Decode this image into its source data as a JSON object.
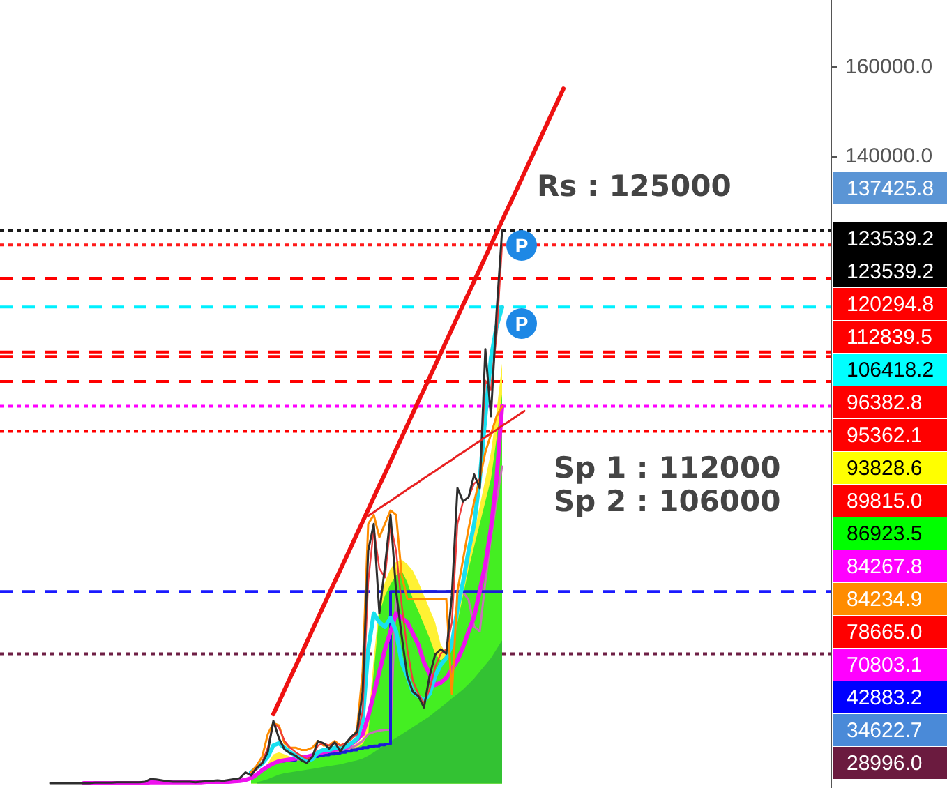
{
  "chart_data": {
    "type": "line",
    "categories": [
      null,
      null,
      null,
      null,
      null,
      null,
      null,
      null,
      null,
      null,
      null,
      null,
      null,
      null,
      null,
      null,
      null,
      null,
      null,
      null,
      null,
      null,
      null,
      null,
      null,
      null,
      null,
      null,
      null,
      null,
      null,
      null,
      null,
      null,
      null,
      null,
      null,
      null,
      null,
      null,
      null,
      null,
      null,
      null,
      null,
      null,
      null,
      null,
      null,
      null,
      null,
      null,
      null,
      null,
      null,
      null,
      null,
      null,
      null,
      null,
      null,
      null,
      null,
      null,
      null,
      null,
      null,
      null,
      null,
      null,
      null,
      null,
      null,
      null,
      null,
      null,
      null,
      null,
      null,
      null,
      null,
      null,
      null,
      null,
      null,
      null,
      null,
      null,
      null,
      null,
      null,
      null,
      null,
      null,
      null,
      null,
      null,
      null,
      null,
      null,
      null,
      null,
      null,
      null,
      null,
      null,
      null,
      null,
      null,
      null,
      null,
      null,
      null,
      null,
      null,
      null,
      null,
      null,
      null,
      null,
      null,
      null,
      null,
      null,
      null,
      null,
      null,
      null,
      null,
      null,
      null,
      null,
      null,
      null,
      null,
      null,
      null,
      null,
      null,
      null,
      null,
      null,
      null,
      null,
      null,
      null,
      null,
      null,
      null,
      null
    ],
    "series": [
      {
        "type": "area",
        "color": "#fff133",
        "values": [
          null,
          null,
          null,
          null,
          null,
          null,
          null,
          null,
          null,
          null,
          null,
          null,
          null,
          null,
          null,
          null,
          null,
          null,
          null,
          null,
          null,
          null,
          null,
          null,
          null,
          null,
          null,
          null,
          null,
          null,
          null,
          null,
          null,
          null,
          null,
          null,
          null,
          null,
          null,
          null,
          null,
          null,
          null,
          null,
          null,
          900,
          1700,
          3000,
          4500,
          6500,
          7000,
          6500,
          6000,
          5800,
          5600,
          5500,
          5800,
          6500,
          6800,
          7000,
          7300,
          7500,
          7800,
          8300,
          9000,
          10000,
          14000,
          28000,
          40000,
          45000,
          48000,
          49500,
          50000,
          49000,
          47500,
          45000,
          42000,
          39000,
          36000,
          31000,
          29000,
          31500,
          37000,
          43000,
          50000,
          56000,
          62000,
          68000,
          74000,
          83000,
          93828.6,
          null,
          null,
          null,
          null,
          null,
          null,
          null,
          null,
          null,
          null,
          null,
          null,
          null,
          null,
          null,
          null,
          null,
          null,
          null,
          null,
          null,
          null,
          null,
          null,
          null,
          null,
          null,
          null,
          null,
          null,
          null,
          null,
          null,
          null,
          null,
          null,
          null,
          null,
          null,
          null,
          null,
          null,
          null,
          null,
          null,
          null,
          null,
          null,
          null,
          null,
          null,
          null,
          null,
          null,
          null,
          null,
          null,
          null,
          null
        ]
      },
      {
        "type": "area",
        "color": "#44ee22",
        "values": [
          null,
          null,
          null,
          null,
          null,
          null,
          null,
          null,
          null,
          null,
          null,
          null,
          null,
          null,
          null,
          null,
          null,
          null,
          null,
          null,
          null,
          null,
          null,
          null,
          null,
          null,
          null,
          null,
          null,
          null,
          null,
          null,
          null,
          null,
          null,
          null,
          null,
          null,
          null,
          null,
          null,
          null,
          null,
          null,
          null,
          800,
          1500,
          2500,
          3500,
          4500,
          5000,
          5000,
          5000,
          5000,
          5200,
          5200,
          5500,
          6000,
          6200,
          6500,
          6800,
          7000,
          7300,
          7600,
          8000,
          8800,
          11000,
          25000,
          38000,
          42000,
          44500,
          46500,
          47500,
          45000,
          41300,
          38500,
          35500,
          32500,
          29000,
          27500,
          28500,
          31000,
          36000,
          42000,
          48000,
          53000,
          58000,
          63000,
          68000,
          77000,
          86923.5,
          null,
          null,
          null,
          null,
          null,
          null,
          null,
          null,
          null,
          null,
          null,
          null,
          null,
          null,
          null,
          null,
          null,
          null,
          null,
          null,
          null,
          null,
          null,
          null,
          null,
          null,
          null,
          null,
          null,
          null,
          null,
          null,
          null,
          null,
          null,
          null,
          null,
          null,
          null,
          null,
          null,
          null,
          null,
          null,
          null,
          null,
          null,
          null,
          null,
          null,
          null,
          null,
          null,
          null,
          null,
          null,
          null,
          null,
          null
        ]
      },
      {
        "type": "area",
        "color": "#33c233",
        "values": [
          null,
          null,
          null,
          null,
          null,
          null,
          null,
          null,
          null,
          null,
          null,
          null,
          null,
          null,
          null,
          null,
          null,
          null,
          null,
          null,
          null,
          null,
          null,
          null,
          null,
          null,
          null,
          null,
          null,
          null,
          null,
          null,
          null,
          null,
          null,
          null,
          null,
          null,
          null,
          null,
          null,
          null,
          null,
          null,
          null,
          null,
          300,
          600,
          1000,
          1500,
          2000,
          2300,
          2500,
          2700,
          2900,
          3100,
          3300,
          3500,
          3700,
          3900,
          4100,
          4300,
          4600,
          4900,
          5200,
          5600,
          6200,
          7000,
          7800,
          8600,
          9400,
          10200,
          11000,
          11800,
          12600,
          13400,
          14200,
          15000,
          16000,
          17000,
          18000,
          19000,
          20000,
          21000,
          22200,
          23500,
          25000,
          26500,
          28000,
          30000,
          32000,
          null,
          null,
          null,
          null,
          null,
          null,
          null,
          null,
          null,
          null,
          null,
          null,
          null,
          null,
          null,
          null,
          null,
          null,
          null,
          null,
          null,
          null,
          null,
          null,
          null,
          null,
          null,
          null,
          null,
          null,
          null,
          null,
          null,
          null,
          null,
          null,
          null,
          null,
          null,
          null,
          null,
          null,
          null,
          null,
          null,
          null,
          null,
          null,
          null,
          null,
          null,
          null,
          null,
          null,
          null,
          null,
          null,
          null,
          null
        ]
      },
      {
        "type": "line",
        "color": "#c870b8",
        "values": [
          null,
          null,
          null,
          null,
          null,
          null,
          null,
          null,
          null,
          null,
          null,
          null,
          null,
          null,
          null,
          null,
          null,
          null,
          null,
          null,
          null,
          null,
          null,
          null,
          null,
          null,
          null,
          null,
          null,
          null,
          null,
          null,
          null,
          null,
          null,
          null,
          null,
          null,
          null,
          null,
          null,
          null,
          null,
          null,
          null,
          1500,
          2200,
          3000,
          3800,
          4500,
          5000,
          5200,
          5300,
          5400,
          5500,
          5600,
          5800,
          6000,
          6300,
          6600,
          6900,
          7200,
          7500,
          8000,
          8600,
          9500,
          11000,
          11500,
          11800,
          12000,
          12000,
          42800,
          42800,
          42800,
          42800,
          42800,
          42800,
          42800,
          42800,
          42800,
          42800,
          42800,
          42800,
          42800,
          41000,
          35000,
          34000,
          45000,
          55000,
          63000,
          70803.1,
          null,
          null,
          null,
          null,
          null,
          null,
          null,
          null,
          null,
          null,
          null,
          null,
          null,
          null,
          null,
          null,
          null,
          null,
          null,
          null,
          null,
          null,
          null,
          null,
          null,
          null,
          null,
          null,
          null,
          null,
          null,
          null,
          null,
          null,
          null,
          null,
          null,
          null,
          null,
          null,
          null,
          null,
          null,
          null,
          null,
          null,
          null,
          null,
          null,
          null,
          null,
          null,
          null,
          null,
          null,
          null,
          null,
          null,
          null
        ]
      },
      {
        "type": "step",
        "color": "#1c1cd8",
        "values": [
          null,
          null,
          null,
          null,
          null,
          null,
          null,
          null,
          null,
          null,
          null,
          null,
          null,
          null,
          null,
          null,
          null,
          null,
          null,
          null,
          null,
          null,
          null,
          null,
          null,
          null,
          null,
          null,
          null,
          null,
          null,
          null,
          null,
          null,
          null,
          null,
          null,
          null,
          null,
          null,
          null,
          null,
          null,
          null,
          null,
          null,
          null,
          null,
          null,
          null,
          5000,
          5000,
          5200,
          5200,
          5500,
          5500,
          5800,
          6000,
          6200,
          6400,
          6600,
          6800,
          7000,
          7200,
          7500,
          7800,
          8000,
          8200,
          8400,
          8600,
          8800,
          42883.2,
          42883.2,
          42883.2,
          42883.2,
          42883.2,
          42883.2,
          42883.2,
          42883.2,
          42883.2,
          42883.2,
          42883.2,
          42883.2,
          42883.2,
          42883.2,
          42883.2,
          42883.2,
          42883.2,
          42883.2,
          42883.2,
          42883.2,
          null,
          null,
          null,
          null,
          null,
          null,
          null,
          null,
          null,
          null,
          null,
          null,
          null,
          null,
          null,
          null,
          null,
          null,
          null,
          null,
          null,
          null,
          null,
          null,
          null,
          null,
          null,
          null,
          null,
          null,
          null,
          null,
          null,
          null,
          null,
          null,
          null,
          null,
          null,
          null,
          null,
          null,
          null,
          null,
          null,
          null,
          null,
          null,
          null,
          null,
          null,
          null,
          null,
          null,
          null,
          null,
          null,
          null,
          null
        ]
      },
      {
        "type": "line",
        "color": "#ee11ee",
        "values": [
          null,
          null,
          null,
          null,
          null,
          null,
          null,
          null,
          null,
          null,
          null,
          null,
          null,
          null,
          null,
          100,
          100,
          100,
          100,
          100,
          100,
          100,
          100,
          100,
          100,
          100,
          100,
          300,
          300,
          300,
          300,
          300,
          300,
          300,
          300,
          300,
          300,
          400,
          400,
          400,
          400,
          400,
          500,
          600,
          800,
          1200,
          2000,
          3000,
          3800,
          4500,
          5000,
          5200,
          5400,
          5600,
          5800,
          6000,
          6300,
          6700,
          7000,
          7300,
          7600,
          7800,
          8000,
          8800,
          9800,
          11000,
          15000,
          20000,
          25000,
          30000,
          34000,
          38000,
          37000,
          36000,
          33500,
          31000,
          27000,
          24500,
          22000,
          22500,
          23600,
          25500,
          27500,
          30500,
          34000,
          37300,
          43000,
          49000,
          57000,
          68000,
          84267.8,
          null,
          null,
          null,
          null,
          null,
          null,
          null,
          null,
          null,
          null,
          null,
          null,
          null,
          null,
          null,
          null,
          null,
          null,
          null,
          null,
          null,
          null,
          null,
          null,
          null,
          null,
          null,
          null,
          null,
          null,
          null,
          null,
          null,
          null,
          null,
          null,
          null,
          null,
          null,
          null,
          null,
          null,
          null,
          null,
          null,
          null,
          null,
          null,
          null,
          null,
          null,
          null,
          null,
          null,
          null,
          null,
          null,
          null,
          null
        ]
      },
      {
        "type": "line",
        "color": "#18e0f0",
        "values": [
          null,
          null,
          null,
          null,
          null,
          null,
          null,
          null,
          null,
          null,
          null,
          null,
          null,
          null,
          null,
          null,
          null,
          null,
          null,
          null,
          null,
          null,
          null,
          null,
          null,
          null,
          null,
          null,
          null,
          null,
          null,
          null,
          null,
          null,
          null,
          null,
          null,
          null,
          null,
          null,
          null,
          null,
          null,
          null,
          null,
          2500,
          3500,
          4500,
          6000,
          8500,
          9000,
          8000,
          7000,
          6200,
          5500,
          5000,
          5500,
          7000,
          7500,
          7500,
          8000,
          7800,
          8200,
          9000,
          10000,
          14000,
          30000,
          38000,
          36000,
          35000,
          37000,
          34000,
          27000,
          24000,
          20500,
          19500,
          18500,
          20000,
          24000,
          26500,
          28000,
          31000,
          39000,
          45000,
          52000,
          58000,
          68000,
          82000,
          95000,
          102000,
          106418.2,
          null,
          null,
          null,
          null,
          null,
          null,
          null,
          null,
          null,
          null,
          null,
          null,
          null,
          null,
          null,
          null,
          null,
          null,
          null,
          null,
          null,
          null,
          null,
          null,
          null,
          null,
          null,
          null,
          null,
          null,
          null,
          null,
          null,
          null,
          null,
          null,
          null,
          null,
          null,
          null,
          null,
          null,
          null,
          null,
          null,
          null,
          null,
          null,
          null,
          null,
          null,
          null,
          null,
          null,
          null,
          null,
          null,
          null,
          null
        ]
      },
      {
        "type": "line",
        "color": "#ff8c00",
        "values": [
          null,
          null,
          null,
          null,
          null,
          null,
          null,
          null,
          null,
          null,
          null,
          null,
          null,
          null,
          null,
          null,
          null,
          null,
          null,
          null,
          null,
          null,
          null,
          null,
          null,
          null,
          null,
          null,
          null,
          null,
          null,
          null,
          null,
          null,
          null,
          null,
          null,
          null,
          null,
          null,
          null,
          null,
          null,
          null,
          null,
          2500,
          4000,
          6000,
          11000,
          13500,
          13000,
          9000,
          8000,
          8000,
          7500,
          7500,
          8000,
          9500,
          8500,
          8500,
          9500,
          8500,
          9000,
          10000,
          12000,
          25000,
          58000,
          60000,
          55000,
          58000,
          61000,
          60000,
          46500,
          41300,
          41300,
          41300,
          41300,
          41300,
          41300,
          41300,
          41300,
          20000,
          43000,
          50000,
          57000,
          63000,
          68000,
          74000,
          78000,
          82000,
          84234.9,
          null,
          null,
          null,
          null,
          null,
          null,
          null,
          null,
          null,
          null,
          null,
          null,
          null,
          null,
          null,
          null,
          null,
          null,
          null,
          null,
          null,
          null,
          null,
          null,
          null,
          null,
          null,
          null,
          null,
          null,
          null,
          null,
          null,
          null,
          null,
          null,
          null,
          null,
          null,
          null,
          null,
          null,
          null,
          null,
          null,
          null,
          null,
          null,
          null,
          null,
          null,
          null,
          null,
          null,
          null,
          null,
          null,
          null,
          null
        ]
      },
      {
        "type": "line",
        "color": "#f03c3c",
        "values": [
          null,
          null,
          null,
          null,
          null,
          null,
          null,
          null,
          null,
          null,
          null,
          null,
          null,
          null,
          null,
          null,
          null,
          null,
          null,
          null,
          null,
          null,
          null,
          null,
          null,
          null,
          null,
          null,
          null,
          null,
          null,
          null,
          null,
          null,
          null,
          null,
          null,
          null,
          null,
          null,
          null,
          null,
          null,
          null,
          null,
          2000,
          3200,
          4800,
          8000,
          13500,
          12500,
          9500,
          8000,
          7000,
          6200,
          5500,
          6000,
          8500,
          9000,
          8500,
          9000,
          8500,
          9000,
          10000,
          11000,
          16000,
          45000,
          57000,
          48000,
          46000,
          58000,
          52000,
          40000,
          30000,
          23000,
          20000,
          18000,
          21000,
          26000,
          29000,
          30000,
          36000,
          58000,
          63000,
          64000,
          67000,
          68000,
          90000,
          88000,
          100000,
          120294.8,
          null,
          null,
          null,
          null,
          null,
          null,
          null,
          null,
          null,
          null,
          null,
          null,
          null,
          null,
          null,
          null,
          null,
          null,
          null,
          null,
          null,
          null,
          null,
          null,
          null,
          null,
          null,
          null,
          null,
          null,
          null,
          null,
          null,
          null,
          null,
          null,
          null,
          null,
          null,
          null,
          null,
          null,
          null,
          null,
          null,
          null,
          null,
          null,
          null,
          null,
          null,
          null,
          null,
          null,
          null,
          null,
          null,
          null,
          null
        ]
      },
      {
        "type": "line",
        "color": "#2e2e2e",
        "values": [
          null,
          null,
          null,
          null,
          null,
          null,
          null,
          null,
          null,
          100,
          100,
          100,
          100,
          100,
          100,
          100,
          100,
          200,
          200,
          200,
          200,
          300,
          300,
          300,
          300,
          300,
          400,
          1000,
          900,
          700,
          500,
          400,
          400,
          400,
          400,
          300,
          400,
          500,
          600,
          700,
          600,
          800,
          1000,
          1200,
          2500,
          1800,
          3500,
          4500,
          7000,
          14000,
          10100,
          7600,
          6800,
          6200,
          5200,
          4600,
          6000,
          9500,
          9000,
          7800,
          9200,
          7200,
          9000,
          10500,
          11500,
          20500,
          52000,
          58000,
          38000,
          48500,
          60000,
          43000,
          33000,
          24000,
          20500,
          19500,
          17000,
          24000,
          28800,
          30000,
          29000,
          42000,
          66000,
          63000,
          64000,
          69000,
          66000,
          97000,
          82000,
          105000,
          123539.2,
          null,
          null,
          null,
          null,
          null,
          null,
          null,
          null,
          null,
          null,
          null,
          null,
          null,
          null,
          null,
          null,
          null,
          null,
          null,
          null,
          null,
          null,
          null,
          null,
          null,
          null,
          null,
          null,
          null,
          null,
          null,
          null,
          null,
          null,
          null,
          null,
          null,
          null,
          null,
          null,
          null,
          null,
          null,
          null,
          null,
          null,
          null,
          null,
          null,
          null,
          null,
          null,
          null,
          null,
          null,
          null,
          null,
          null,
          null
        ]
      },
      {
        "type": "line",
        "color": "#ee1111",
        "values": [
          null,
          null,
          null,
          null,
          null,
          null,
          null,
          null,
          null,
          null,
          null,
          null,
          null,
          null,
          null,
          null,
          null,
          null,
          null,
          null,
          null,
          null,
          null,
          null,
          null,
          null,
          null,
          null,
          null,
          null,
          null,
          null,
          null,
          null,
          null,
          null,
          null,
          null,
          null,
          null,
          null,
          null,
          null,
          null,
          null,
          null,
          null,
          null,
          null,
          15500,
          18200,
          20900,
          23600,
          26200,
          28900,
          31600,
          34300,
          37000,
          39700,
          42400,
          45100,
          47700,
          50400,
          53100,
          55800,
          58500,
          61200,
          63900,
          66600,
          69200,
          71900,
          74600,
          77300,
          80000,
          82700,
          85400,
          88000,
          90700,
          93400,
          96100,
          98800,
          101500,
          104200,
          106900,
          109500,
          112200,
          114900,
          117600,
          120300,
          123000,
          125700,
          128400,
          131000,
          133700,
          136400,
          139100,
          141800,
          144500,
          147200,
          149900,
          152500,
          155200,
          null,
          null,
          null,
          null,
          null,
          null,
          null,
          null,
          null,
          null,
          null,
          null,
          null,
          null,
          null,
          null,
          null,
          null,
          null,
          null,
          null,
          null,
          null,
          null,
          null,
          null,
          null,
          null,
          null,
          null,
          null,
          null,
          null,
          null,
          null,
          null,
          null,
          null,
          null,
          null,
          null,
          null,
          null,
          null,
          null,
          null,
          null,
          null
        ]
      },
      {
        "type": "line",
        "color": "#e82020",
        "values": [
          null,
          null,
          null,
          null,
          null,
          null,
          null,
          null,
          null,
          null,
          null,
          null,
          null,
          null,
          null,
          null,
          null,
          null,
          null,
          null,
          null,
          null,
          null,
          null,
          null,
          null,
          null,
          null,
          null,
          null,
          null,
          null,
          null,
          null,
          null,
          null,
          null,
          null,
          null,
          null,
          null,
          null,
          null,
          null,
          null,
          null,
          null,
          null,
          null,
          null,
          null,
          null,
          null,
          null,
          null,
          null,
          null,
          null,
          null,
          null,
          null,
          null,
          null,
          null,
          null,
          null,
          59800,
          60600,
          61500,
          62300,
          63100,
          64000,
          64800,
          65700,
          66500,
          67300,
          68200,
          69000,
          69800,
          70700,
          71500,
          72300,
          73200,
          74000,
          74800,
          75700,
          76500,
          77400,
          78200,
          79000,
          79900,
          80700,
          81500,
          82400,
          83200,
          null,
          null,
          null,
          null,
          null,
          null,
          null,
          null,
          null,
          null,
          null,
          null,
          null,
          null,
          null,
          null,
          null,
          null,
          null,
          null,
          null,
          null,
          null,
          null,
          null,
          null,
          null,
          null,
          null,
          null,
          null,
          null,
          null,
          null,
          null,
          null,
          null,
          null,
          null,
          null,
          null,
          null,
          null,
          null,
          null,
          null,
          null,
          null,
          null,
          null,
          null,
          null,
          null,
          null,
          null
        ]
      }
    ],
    "ylim": [
      -1000,
      175000
    ],
    "yticks": [
      {
        "value": 160000,
        "label": "160000.0"
      },
      {
        "value": 140000,
        "label": "140000.0"
      }
    ],
    "ref_lines": [
      {
        "axis": "y",
        "value": 123539.2,
        "color": "#1a1a1a",
        "line_style": "dotted"
      },
      {
        "axis": "y",
        "value": 120294.8,
        "color": "#ff1a1a",
        "line_style": "dotted"
      },
      {
        "axis": "y",
        "value": 112839.5,
        "color": "#ff0000",
        "line_style": "dashed"
      },
      {
        "axis": "y",
        "value": 106418.2,
        "color": "#00f0ff",
        "line_style": "dashed"
      },
      {
        "axis": "y",
        "value": 96382.8,
        "color": "#ff0000",
        "line_style": "dashed"
      },
      {
        "axis": "y",
        "value": 95362.1,
        "color": "#ff0000",
        "line_style": "dashed"
      },
      {
        "axis": "y",
        "value": 89815,
        "color": "#ff0000",
        "line_style": "dashed"
      },
      {
        "axis": "y",
        "value": 84267.8,
        "color": "#ff00ff",
        "line_style": "dotted"
      },
      {
        "axis": "y",
        "value": 78665,
        "color": "#ff0000",
        "line_style": "dotted"
      },
      {
        "axis": "y",
        "value": 42883.2,
        "color": "#1a1aff",
        "line_style": "dashed"
      },
      {
        "axis": "y",
        "value": 28996,
        "color": "#6e1f45",
        "line_style": "dotted"
      }
    ],
    "annotations": [
      "Rs : 125000",
      "Sp 1 : 112000",
      "Sp 2 : 106000",
      "P",
      "P",
      "137425.8",
      "123539.2",
      "123539.2",
      "120294.8",
      "112839.5",
      "106418.2",
      "96382.8",
      "95362.1",
      "93828.6",
      "89815.0",
      "86923.5",
      "84267.8",
      "84234.9",
      "78665.0",
      "70803.1",
      "42883.2",
      "34622.7",
      "28996.0"
    ],
    "grid": false,
    "legend": false,
    "tick_labels": "y",
    "marker": "none"
  }
}
